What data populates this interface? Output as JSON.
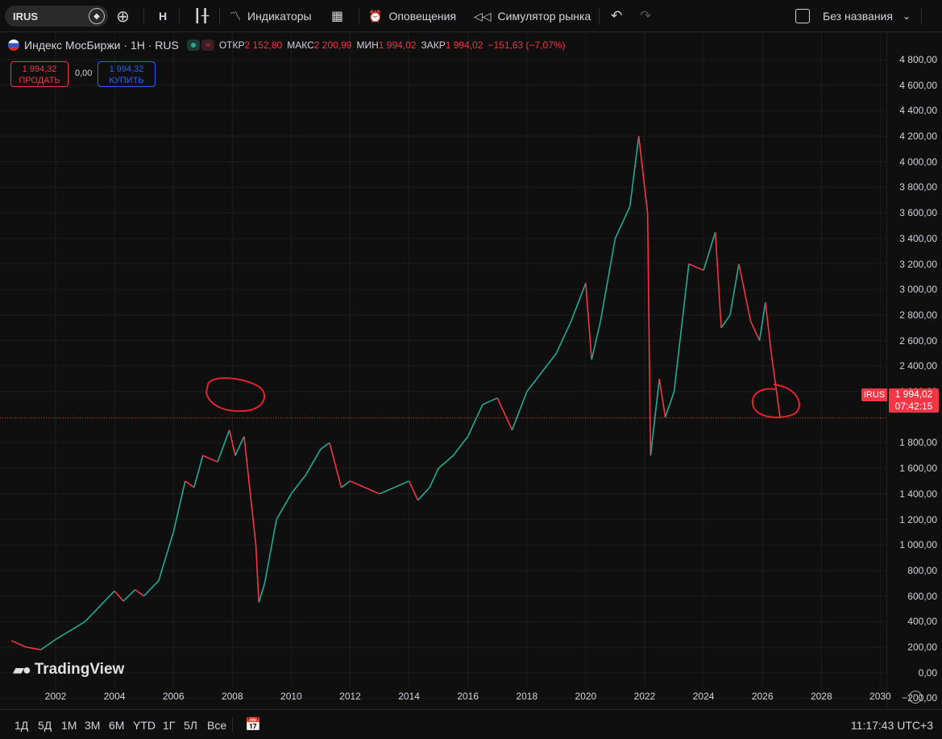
{
  "toolbar": {
    "symbol": "IRUS",
    "interval": "Н",
    "indicators_label": "Индикаторы",
    "alerts_label": "Оповещения",
    "replay_label": "Симулятор рынка",
    "layout_name": "Без названия"
  },
  "legend": {
    "title": "Индекс МосБиржи · 1Н · RUS",
    "open_label": "ОТКР",
    "open_value": "2 152,80",
    "high_label": "МАКС",
    "high_value": "2 200,99",
    "low_label": "МИН",
    "low_value": "1 994,02",
    "close_label": "ЗАКР",
    "close_value": "1 994,02",
    "change_value": "−151,63 (−7,07%)",
    "sell_price": "1 994,32",
    "sell_label": "ПРОДАТЬ",
    "spread": "0,00",
    "buy_price": "1 994,32",
    "buy_label": "КУПИТЬ"
  },
  "price_tag": {
    "symbol": "IRUS",
    "price": "1 994,02",
    "countdown": "07:42:15"
  },
  "watermark": "TradingView",
  "bottom": {
    "ranges": [
      "1Д",
      "5Д",
      "1М",
      "3М",
      "6М",
      "YTD",
      "1Г",
      "5Л",
      "Все"
    ],
    "clock": "11:17:43 UTC+3"
  },
  "colors": {
    "up": "#22ab94",
    "down": "#f23645",
    "background": "#0f0f0f",
    "annotation": "#e8222c"
  },
  "chart_data": {
    "type": "line",
    "title": "Индекс МосБиржи · 1Н · RUS",
    "xlabel": "",
    "ylabel": "",
    "xlim": [
      2000.4,
      2030.4
    ],
    "ylim": [
      -200,
      4800
    ],
    "y_ticks": [
      "4 800,00",
      "4 600,00",
      "4 400,00",
      "4 200,00",
      "4 000,00",
      "3 800,00",
      "3 600,00",
      "3 400,00",
      "3 200,00",
      "3 000,00",
      "2 800,00",
      "2 600,00",
      "2 400,00",
      "2 200,00",
      "1 800,00",
      "1 600,00",
      "1 400,00",
      "1 200,00",
      "1 000,00",
      "800,00",
      "600,00",
      "400,00",
      "200,00",
      "0,00",
      "−200,00"
    ],
    "y_tick_values": [
      4800,
      4600,
      4400,
      4200,
      4000,
      3800,
      3600,
      3400,
      3200,
      3000,
      2800,
      2600,
      2400,
      2200,
      1800,
      1600,
      1400,
      1200,
      1000,
      800,
      600,
      400,
      200,
      0,
      -200
    ],
    "x_ticks": [
      "2002",
      "2004",
      "2006",
      "2008",
      "2010",
      "2012",
      "2014",
      "2016",
      "2018",
      "2020",
      "2022",
      "2024",
      "2026",
      "2028",
      "2030"
    ],
    "x_tick_values": [
      2002,
      2004,
      2006,
      2008,
      2010,
      2012,
      2014,
      2016,
      2018,
      2020,
      2022,
      2024,
      2026,
      2028,
      2030
    ],
    "current_price": 1994.02,
    "series": [
      {
        "x": [
          2000.5,
          2001.0,
          2001.5,
          2002.0,
          2002.5,
          2003.0,
          2003.5,
          2004.0,
          2004.3,
          2004.7,
          2005.0,
          2005.5,
          2006.0,
          2006.4,
          2006.7,
          2007.0,
          2007.5,
          2007.9,
          2008.1,
          2008.4,
          2008.8,
          2008.9,
          2009.1,
          2009.5,
          2010.0,
          2010.5,
          2011.0,
          2011.3,
          2011.7,
          2012.0,
          2012.5,
          2013.0,
          2013.5,
          2014.0,
          2014.3,
          2014.7,
          2015.0,
          2015.5,
          2016.0,
          2016.5,
          2017.0,
          2017.5,
          2018.0,
          2018.5,
          2019.0,
          2019.5,
          2020.0,
          2020.2,
          2020.5,
          2021.0,
          2021.5,
          2021.8,
          2022.1,
          2022.2,
          2022.5,
          2022.7,
          2023.0,
          2023.5,
          2024.0,
          2024.4,
          2024.6,
          2024.9,
          2025.2,
          2025.6,
          2025.9,
          2026.1,
          2026.3,
          2026.6
        ],
        "y": [
          250,
          200,
          180,
          260,
          330,
          400,
          520,
          640,
          560,
          650,
          600,
          720,
          1100,
          1500,
          1450,
          1700,
          1650,
          1900,
          1700,
          1850,
          1000,
          550,
          700,
          1200,
          1400,
          1550,
          1750,
          1800,
          1450,
          1500,
          1450,
          1400,
          1450,
          1500,
          1350,
          1450,
          1600,
          1700,
          1850,
          2100,
          2150,
          1900,
          2200,
          2350,
          2500,
          2750,
          3050,
          2450,
          2750,
          3400,
          3650,
          4200,
          3600,
          1700,
          2300,
          2000,
          2200,
          3200,
          3150,
          3450,
          2700,
          2800,
          3200,
          2750,
          2600,
          2900,
          2500,
          1994
        ]
      }
    ]
  }
}
